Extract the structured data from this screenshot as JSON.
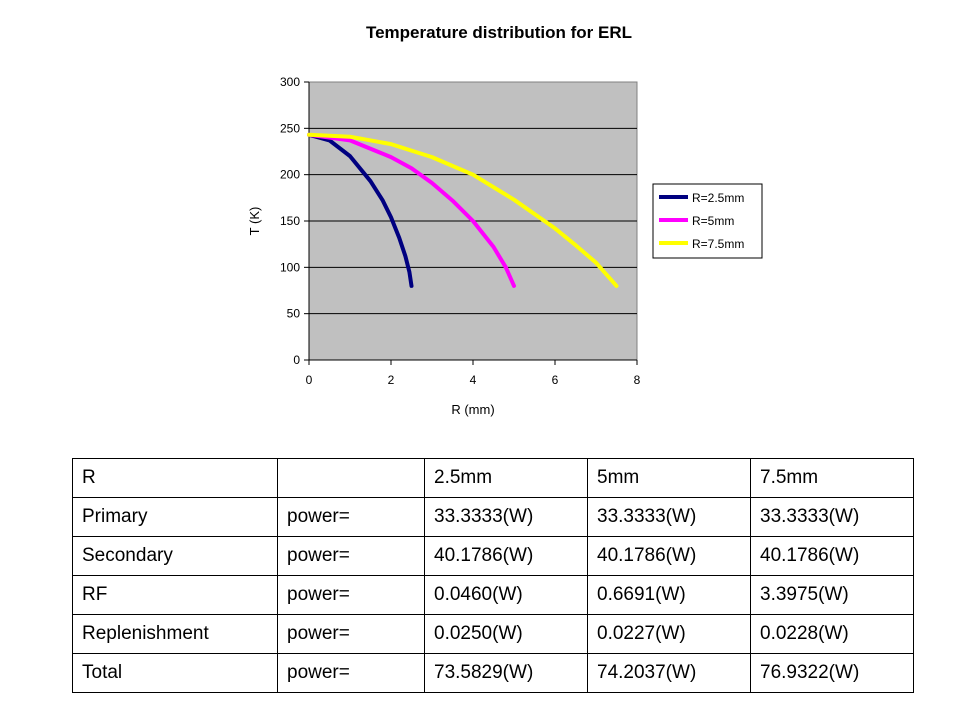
{
  "chart_data": {
    "type": "line",
    "title": "Temperature distribution for ERL",
    "xlabel": "R (mm)",
    "ylabel": "T (K)",
    "xlim": [
      0,
      8
    ],
    "ylim": [
      0,
      300
    ],
    "x_ticks": [
      0,
      2,
      4,
      6,
      8
    ],
    "y_ticks": [
      0,
      50,
      100,
      150,
      200,
      250,
      300
    ],
    "grid": "horizontal",
    "legend_position": "right",
    "series": [
      {
        "name": "R=2.5mm",
        "color": "#000080",
        "points": [
          [
            0,
            243
          ],
          [
            0.5,
            237
          ],
          [
            1.0,
            220
          ],
          [
            1.5,
            193
          ],
          [
            1.8,
            172
          ],
          [
            2.0,
            154
          ],
          [
            2.2,
            132
          ],
          [
            2.35,
            112
          ],
          [
            2.45,
            95
          ],
          [
            2.5,
            80
          ]
        ]
      },
      {
        "name": "R=5mm",
        "color": "#ff00ff",
        "points": [
          [
            0,
            243
          ],
          [
            1.0,
            237
          ],
          [
            2.0,
            219
          ],
          [
            2.5,
            207
          ],
          [
            3.0,
            191
          ],
          [
            3.5,
            172
          ],
          [
            4.0,
            150
          ],
          [
            4.5,
            122
          ],
          [
            4.8,
            100
          ],
          [
            5.0,
            80
          ]
        ]
      },
      {
        "name": "R=7.5mm",
        "color": "#ffff00",
        "points": [
          [
            0,
            243
          ],
          [
            1.0,
            241
          ],
          [
            2.0,
            233
          ],
          [
            3.0,
            219
          ],
          [
            4.0,
            200
          ],
          [
            5.0,
            173
          ],
          [
            6.0,
            142
          ],
          [
            6.5,
            124
          ],
          [
            7.0,
            105
          ],
          [
            7.5,
            80
          ]
        ]
      }
    ]
  },
  "table": {
    "rows": [
      [
        "R",
        "",
        "2.5mm",
        "5mm",
        "7.5mm"
      ],
      [
        "Primary",
        "power=",
        "33.3333(W)",
        "33.3333(W)",
        "33.3333(W)"
      ],
      [
        "Secondary",
        "power=",
        "40.1786(W)",
        "40.1786(W)",
        "40.1786(W)"
      ],
      [
        "RF",
        "power=",
        "0.0460(W)",
        "0.6691(W)",
        "3.3975(W)"
      ],
      [
        "Replenishment",
        "power=",
        "0.0250(W)",
        "0.0227(W)",
        "0.0228(W)"
      ],
      [
        "Total",
        "power=",
        "73.5829(W)",
        "74.2037(W)",
        "76.9322(W)"
      ]
    ]
  }
}
